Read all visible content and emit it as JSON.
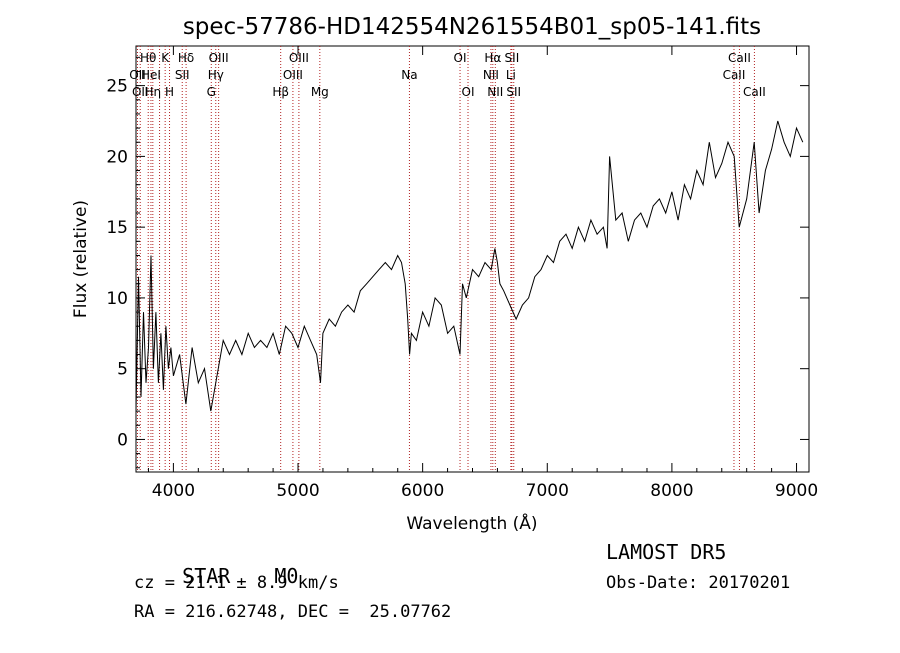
{
  "chart_data": {
    "type": "line",
    "title": "spec-57786-HD142554N261554B01_sp05-141.fits",
    "xlabel": "Wavelength (Å)",
    "ylabel": "Flux (relative)",
    "xlim": [
      3700,
      9100
    ],
    "ylim": [
      -2.3,
      27.8
    ],
    "xticks": [
      4000,
      5000,
      6000,
      7000,
      8000,
      9000
    ],
    "yticks": [
      0,
      5,
      10,
      15,
      20,
      25
    ],
    "grid": false,
    "series": [
      {
        "x": [
          3700,
          3720,
          3740,
          3760,
          3780,
          3800,
          3820,
          3840,
          3860,
          3880,
          3900,
          3920,
          3940,
          3960,
          3980,
          4000,
          4050,
          4100,
          4150,
          4200,
          4250,
          4300,
          4350,
          4400,
          4450,
          4500,
          4550,
          4600,
          4650,
          4700,
          4750,
          4800,
          4850,
          4900,
          4950,
          5000,
          5050,
          5100,
          5150,
          5180,
          5200,
          5250,
          5300,
          5350,
          5400,
          5450,
          5500,
          5550,
          5600,
          5650,
          5700,
          5750,
          5800,
          5830,
          5860,
          5880,
          5895,
          5910,
          5950,
          6000,
          6050,
          6100,
          6150,
          6200,
          6250,
          6300,
          6320,
          6350,
          6400,
          6450,
          6500,
          6550,
          6580,
          6600,
          6620,
          6650,
          6700,
          6750,
          6800,
          6850,
          6900,
          6950,
          7000,
          7050,
          7100,
          7150,
          7200,
          7250,
          7300,
          7350,
          7400,
          7450,
          7480,
          7500,
          7550,
          7600,
          7650,
          7700,
          7750,
          7800,
          7850,
          7900,
          7950,
          8000,
          8050,
          8100,
          8150,
          8200,
          8250,
          8300,
          8350,
          8400,
          8450,
          8500,
          8540,
          8600,
          8660,
          8700,
          8750,
          8800,
          8850,
          8900,
          8950,
          9000,
          9050
        ],
        "y": [
          2.0,
          11.5,
          3.0,
          9.0,
          4.0,
          6.5,
          13.0,
          5.0,
          9.0,
          4.0,
          7.5,
          3.5,
          8.0,
          5.0,
          6.5,
          4.5,
          6.0,
          2.5,
          6.5,
          4.0,
          5.0,
          2.0,
          4.5,
          7.0,
          6.0,
          7.0,
          6.0,
          7.5,
          6.5,
          7.0,
          6.5,
          7.5,
          6.0,
          8.0,
          7.5,
          6.5,
          8.0,
          7.0,
          6.0,
          4.0,
          7.5,
          8.5,
          8.0,
          9.0,
          9.5,
          9.0,
          10.5,
          11.0,
          11.5,
          12.0,
          12.5,
          12.0,
          13.0,
          12.5,
          11.0,
          8.5,
          6.0,
          7.5,
          7.0,
          9.0,
          8.0,
          10.0,
          9.5,
          7.5,
          8.0,
          6.0,
          11.0,
          10.0,
          12.0,
          11.5,
          12.5,
          12.0,
          13.5,
          12.5,
          11.0,
          10.5,
          9.5,
          8.5,
          9.5,
          10.0,
          11.5,
          12.0,
          13.0,
          12.5,
          14.0,
          14.5,
          13.5,
          15.0,
          14.0,
          15.5,
          14.5,
          15.0,
          13.5,
          20.0,
          15.5,
          16.0,
          14.0,
          15.5,
          16.0,
          15.0,
          16.5,
          17.0,
          16.0,
          17.5,
          15.5,
          18.0,
          17.0,
          19.0,
          18.0,
          21.0,
          18.5,
          19.5,
          21.0,
          20.0,
          15.0,
          17.0,
          21.0,
          16.0,
          19.0,
          20.5,
          22.5,
          21.0,
          20.0,
          22.0,
          21.0
        ]
      }
    ],
    "lines": [
      {
        "x": 3712,
        "label": "OII",
        "row": 1
      },
      {
        "x": 3734,
        "label": "OII",
        "row": 2
      },
      {
        "x": 3798,
        "label": "Hθ",
        "row": 0
      },
      {
        "x": 3820,
        "label": "HeI",
        "row": 1
      },
      {
        "x": 3835,
        "label": "Hη",
        "row": 2
      },
      {
        "x": 3889,
        "label": "",
        "row": 0
      },
      {
        "x": 3934,
        "label": "K",
        "row": 0
      },
      {
        "x": 3969,
        "label": "H",
        "row": 2
      },
      {
        "x": 4071,
        "label": "SII",
        "row": 1
      },
      {
        "x": 4102,
        "label": "Hδ",
        "row": 0
      },
      {
        "x": 4304,
        "label": "G",
        "row": 2
      },
      {
        "x": 4340,
        "label": "Hγ",
        "row": 1
      },
      {
        "x": 4363,
        "label": "OIII",
        "row": 0
      },
      {
        "x": 4861,
        "label": "Hβ",
        "row": 2
      },
      {
        "x": 4959,
        "label": "OIII",
        "row": 1
      },
      {
        "x": 5007,
        "label": "OIII",
        "row": 0
      },
      {
        "x": 5175,
        "label": "Mg",
        "row": 2
      },
      {
        "x": 5894,
        "label": "Na",
        "row": 1
      },
      {
        "x": 6300,
        "label": "OI",
        "row": 0
      },
      {
        "x": 6364,
        "label": "OI",
        "row": 2
      },
      {
        "x": 6548,
        "label": "NII",
        "row": 1
      },
      {
        "x": 6563,
        "label": "Hα",
        "row": 0
      },
      {
        "x": 6583,
        "label": "NII",
        "row": 2
      },
      {
        "x": 6708,
        "label": "Li",
        "row": 1
      },
      {
        "x": 6716,
        "label": "SII",
        "row": 0
      },
      {
        "x": 6731,
        "label": "SII",
        "row": 2
      },
      {
        "x": 8498,
        "label": "CaII",
        "row": 1
      },
      {
        "x": 8542,
        "label": "CaII",
        "row": 0
      },
      {
        "x": 8662,
        "label": "CaII",
        "row": 2
      }
    ],
    "line_color": "#b22222",
    "annotations": {
      "class": "STAR",
      "subclass": "M0",
      "cz": "cz = 21.1 ± 8.9 km/s",
      "coords": "RA = 216.62748, DEC =  25.07762",
      "survey": "LAMOST DR5",
      "obs_date": "Obs-Date: 20170201"
    }
  }
}
